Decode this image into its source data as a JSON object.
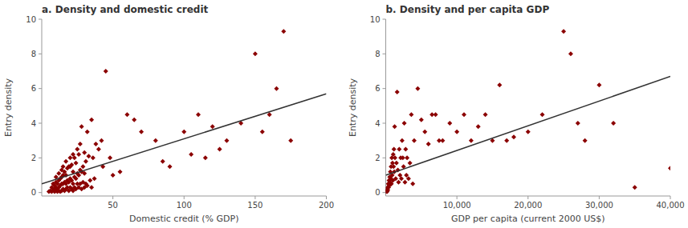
{
  "chart_data": [
    {
      "type": "scatter",
      "title": "a. Density and domestic credit",
      "xlabel": "Domestic credit (% GDP)",
      "ylabel": "Entry density",
      "xlim": [
        0,
        200
      ],
      "ylim": [
        -0.2,
        10
      ],
      "xticks": [
        50,
        100,
        150,
        200
      ],
      "yticks": [
        0,
        2,
        4,
        6,
        8,
        10
      ],
      "grid": false,
      "series": [
        {
          "type": "scatter",
          "color": "#8B0000",
          "marker": "diamond",
          "x": [
            5,
            6,
            7,
            7,
            8,
            8,
            9,
            9,
            9,
            10,
            10,
            10,
            10,
            11,
            11,
            11,
            12,
            12,
            12,
            12,
            13,
            13,
            13,
            14,
            14,
            14,
            14,
            15,
            15,
            15,
            15,
            16,
            16,
            16,
            17,
            17,
            17,
            17,
            18,
            18,
            18,
            19,
            19,
            19,
            20,
            20,
            20,
            20,
            21,
            21,
            21,
            22,
            22,
            22,
            22,
            23,
            23,
            23,
            24,
            24,
            24,
            25,
            25,
            25,
            26,
            26,
            26,
            27,
            27,
            27,
            28,
            28,
            28,
            29,
            29,
            30,
            30,
            30,
            31,
            31,
            32,
            32,
            33,
            34,
            35,
            35,
            36,
            37,
            38,
            40,
            42,
            43,
            45,
            48,
            50,
            55,
            60,
            65,
            70,
            80,
            85,
            90,
            100,
            105,
            110,
            115,
            120,
            125,
            130,
            140,
            150,
            155,
            160,
            165,
            170,
            175
          ],
          "values": [
            0.05,
            0.1,
            0.05,
            0.3,
            0.15,
            0.5,
            0.05,
            0.2,
            0.4,
            0.1,
            0.3,
            0.6,
            0.9,
            0.05,
            0.2,
            0.5,
            0.1,
            0.3,
            0.7,
            1.1,
            0.05,
            0.4,
            0.8,
            0.1,
            0.5,
            0.9,
            1.3,
            0.2,
            0.5,
            1.0,
            1.5,
            0.1,
            0.6,
            1.2,
            0.2,
            0.5,
            1.0,
            1.8,
            0.3,
            0.7,
            1.4,
            0.1,
            0.6,
            1.5,
            0.3,
            0.8,
            1.5,
            2.0,
            0.2,
            0.7,
            1.6,
            0.1,
            0.5,
            1.2,
            2.2,
            0.3,
            0.9,
            2.0,
            0.2,
            0.8,
            1.7,
            0.5,
            1.1,
            2.5,
            0.3,
            1.0,
            2.2,
            0.5,
            1.3,
            2.8,
            0.2,
            1.2,
            3.8,
            0.6,
            1.5,
            0.3,
            1.1,
            2.3,
            0.5,
            1.8,
            3.5,
            0.4,
            2.1,
            0.7,
            4.2,
            0.3,
            2.0,
            0.8,
            2.8,
            2.5,
            3.0,
            1.5,
            7.0,
            2.0,
            1.0,
            1.2,
            4.5,
            4.2,
            3.5,
            3.0,
            1.8,
            1.5,
            3.5,
            2.2,
            4.5,
            2.0,
            3.8,
            2.5,
            3.0,
            4.0,
            8.0,
            3.5,
            4.5,
            6.0,
            9.3,
            3.0
          ]
        },
        {
          "type": "line",
          "color": "#333333",
          "x": [
            0,
            200
          ],
          "values": [
            0.5,
            5.7
          ]
        }
      ]
    },
    {
      "type": "scatter",
      "title": "b. Density and per capita GDP",
      "xlabel": "GDP per capita (current 2000 US$)",
      "ylabel": "Entry density",
      "xlim": [
        0,
        40000
      ],
      "ylim": [
        -0.2,
        10
      ],
      "xticks": [
        {
          "value": 10000,
          "label": "10,000"
        },
        {
          "value": 20000,
          "label": "20,000"
        },
        {
          "value": 30000,
          "label": "30,000"
        },
        {
          "value": 40000,
          "label": "40,000"
        }
      ],
      "yticks": [
        0,
        2,
        4,
        6,
        8,
        10
      ],
      "grid": false,
      "series": [
        {
          "type": "scatter",
          "color": "#8B0000",
          "marker": "diamond",
          "x": [
            50,
            100,
            150,
            200,
            250,
            300,
            350,
            400,
            450,
            500,
            550,
            600,
            650,
            700,
            750,
            800,
            850,
            900,
            950,
            1000,
            1050,
            1100,
            1150,
            1200,
            1250,
            1300,
            1400,
            1500,
            1600,
            1700,
            1800,
            1900,
            2000,
            2100,
            2200,
            2300,
            2400,
            2500,
            2600,
            2700,
            2800,
            2900,
            3000,
            3200,
            3400,
            3600,
            3800,
            4000,
            4500,
            5000,
            5500,
            6000,
            6500,
            7000,
            7500,
            8000,
            9000,
            10000,
            11000,
            12000,
            13000,
            14000,
            15000,
            16000,
            17000,
            18000,
            20000,
            22000,
            25000,
            26000,
            27000,
            28000,
            30000,
            32000,
            35000,
            40000
          ],
          "values": [
            0.05,
            0.1,
            0.2,
            0.05,
            0.3,
            0.15,
            0.5,
            0.3,
            0.7,
            0.4,
            0.9,
            0.6,
            1.2,
            0.8,
            1.5,
            0.5,
            2.0,
            1.0,
            1.7,
            0.7,
            2.2,
            1.5,
            2.5,
            1.2,
            3.8,
            2.0,
            0.8,
            1.7,
            5.8,
            1.3,
            0.6,
            2.5,
            1.0,
            2.0,
            0.8,
            3.0,
            2.0,
            1.5,
            4.0,
            0.6,
            2.5,
            1.0,
            2.0,
            0.8,
            1.7,
            4.5,
            0.5,
            3.0,
            6.0,
            4.2,
            3.5,
            2.8,
            4.5,
            4.5,
            3.0,
            3.0,
            4.0,
            3.5,
            4.5,
            3.0,
            3.8,
            4.5,
            3.0,
            6.2,
            3.0,
            3.2,
            3.5,
            4.5,
            9.3,
            8.0,
            4.0,
            3.0,
            6.2,
            4.0,
            0.3,
            1.4
          ]
        },
        {
          "type": "line",
          "color": "#333333",
          "x": [
            0,
            40000
          ],
          "values": [
            1.0,
            6.7
          ]
        }
      ]
    }
  ]
}
